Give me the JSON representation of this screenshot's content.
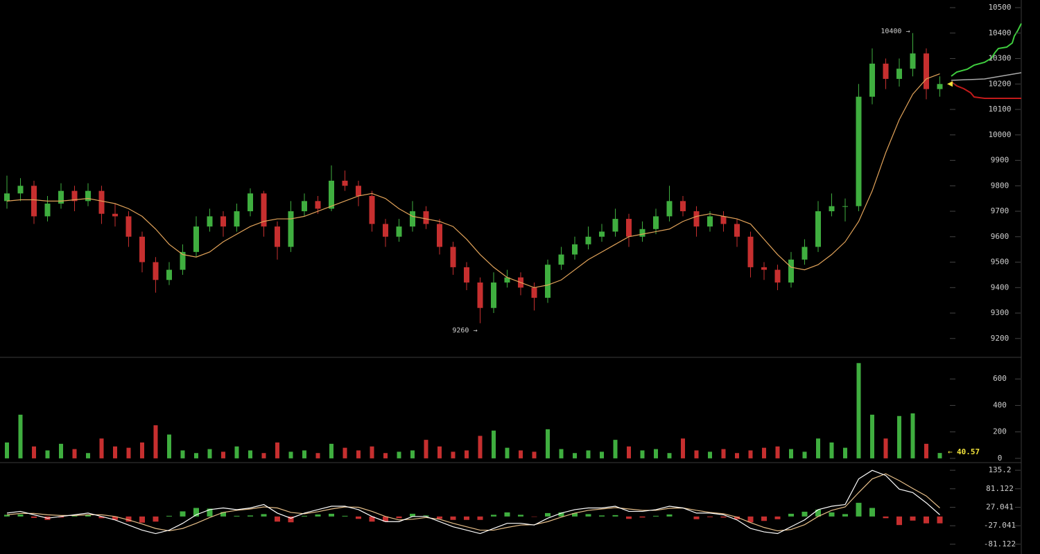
{
  "chart_data": [
    {
      "type": "candlestick",
      "up_color": "#3fae3f",
      "down_color": "#c62f2f",
      "open": [
        9740,
        9770,
        9800,
        9680,
        9730,
        9780,
        9740,
        9780,
        9690,
        9680,
        9600,
        9500,
        9430,
        9470,
        9540,
        9640,
        9680,
        9640,
        9700,
        9770,
        9640,
        9560,
        9700,
        9740,
        9710,
        9820,
        9800,
        9760,
        9650,
        9600,
        9640,
        9700,
        9650,
        9560,
        9480,
        9420,
        9320,
        9420,
        9440,
        9400,
        9360,
        9490,
        9530,
        9570,
        9600,
        9620,
        9670,
        9600,
        9630,
        9680,
        9740,
        9700,
        9640,
        9680,
        9650,
        9600,
        9480,
        9470,
        9420,
        9510,
        9560,
        9700,
        9720,
        9720,
        10150,
        10280,
        10220,
        10260,
        10320,
        10180
      ],
      "high": [
        9840,
        9830,
        9820,
        9760,
        9810,
        9800,
        9810,
        9800,
        9730,
        9700,
        9620,
        9520,
        9500,
        9570,
        9680,
        9710,
        9700,
        9730,
        9790,
        9780,
        9660,
        9740,
        9770,
        9760,
        9880,
        9860,
        9820,
        9780,
        9670,
        9670,
        9740,
        9720,
        9670,
        9580,
        9500,
        9440,
        9460,
        9470,
        9460,
        9420,
        9510,
        9560,
        9600,
        9640,
        9650,
        9710,
        9690,
        9660,
        9710,
        9800,
        9760,
        9720,
        9700,
        9700,
        9670,
        9620,
        9500,
        9490,
        9540,
        9590,
        9740,
        9770,
        9750,
        10200,
        10340,
        10300,
        10300,
        10400,
        10340,
        10230
      ],
      "low": [
        9710,
        9740,
        9650,
        9660,
        9710,
        9700,
        9720,
        9650,
        9640,
        9560,
        9460,
        9380,
        9410,
        9450,
        9520,
        9620,
        9600,
        9620,
        9680,
        9600,
        9510,
        9540,
        9680,
        9690,
        9700,
        9780,
        9720,
        9620,
        9560,
        9580,
        9620,
        9630,
        9530,
        9450,
        9390,
        9260,
        9300,
        9400,
        9370,
        9310,
        9340,
        9470,
        9510,
        9550,
        9580,
        9600,
        9560,
        9580,
        9610,
        9660,
        9680,
        9600,
        9620,
        9620,
        9560,
        9440,
        9430,
        9390,
        9400,
        9490,
        9540,
        9680,
        9660,
        9700,
        10120,
        10180,
        10190,
        10230,
        10140,
        10150
      ],
      "close": [
        9770,
        9800,
        9680,
        9730,
        9780,
        9740,
        9780,
        9690,
        9680,
        9600,
        9500,
        9430,
        9470,
        9540,
        9640,
        9680,
        9640,
        9700,
        9770,
        9640,
        9560,
        9700,
        9740,
        9710,
        9820,
        9800,
        9760,
        9650,
        9600,
        9640,
        9700,
        9650,
        9560,
        9480,
        9420,
        9320,
        9420,
        9440,
        9400,
        9360,
        9490,
        9530,
        9570,
        9600,
        9620,
        9670,
        9600,
        9630,
        9680,
        9740,
        9700,
        9640,
        9680,
        9650,
        9600,
        9480,
        9470,
        9420,
        9510,
        9560,
        9700,
        9720,
        9720,
        10150,
        10280,
        10220,
        10260,
        10320,
        10180,
        10200
      ],
      "moving_average": {
        "color": "#e3a45a",
        "values": [
          9740,
          9745,
          9745,
          9740,
          9740,
          9745,
          9750,
          9740,
          9730,
          9710,
          9680,
          9630,
          9570,
          9530,
          9520,
          9540,
          9580,
          9610,
          9640,
          9660,
          9670,
          9670,
          9680,
          9700,
          9720,
          9740,
          9760,
          9770,
          9750,
          9710,
          9680,
          9670,
          9660,
          9640,
          9590,
          9530,
          9480,
          9440,
          9420,
          9400,
          9410,
          9430,
          9470,
          9510,
          9540,
          9570,
          9600,
          9610,
          9620,
          9630,
          9660,
          9680,
          9690,
          9680,
          9670,
          9650,
          9590,
          9530,
          9480,
          9470,
          9490,
          9530,
          9580,
          9660,
          9780,
          9930,
          10060,
          10160,
          10220,
          10240
        ]
      },
      "high_label": "10400 →",
      "low_label": "9260 →",
      "ylim": [
        9126,
        10530
      ],
      "yticks": [
        9200,
        9300,
        9400,
        9500,
        9600,
        9700,
        9800,
        9900,
        10000,
        10100,
        10200,
        10300,
        10400,
        10500
      ]
    },
    {
      "type": "bar",
      "values": [
        120,
        330,
        90,
        60,
        110,
        70,
        40,
        150,
        90,
        80,
        120,
        250,
        180,
        60,
        40,
        70,
        50,
        90,
        60,
        40,
        120,
        50,
        60,
        40,
        110,
        80,
        60,
        90,
        40,
        50,
        60,
        140,
        90,
        50,
        60,
        170,
        210,
        80,
        60,
        50,
        220,
        70,
        40,
        60,
        50,
        140,
        90,
        60,
        70,
        40,
        150,
        60,
        50,
        70,
        40,
        60,
        80,
        90,
        70,
        50,
        150,
        120,
        80,
        720,
        330,
        150,
        320,
        340,
        110,
        40.57
      ],
      "ylim": [
        -32,
        753
      ],
      "yticks": [
        0,
        200,
        400,
        600
      ]
    },
    {
      "type": "macd",
      "macd": {
        "color": "#ffffff",
        "values": [
          10,
          15,
          5,
          -5,
          0,
          5,
          10,
          0,
          -10,
          -25,
          -40,
          -50,
          -40,
          -20,
          5,
          20,
          25,
          20,
          25,
          35,
          10,
          -5,
          10,
          20,
          30,
          30,
          20,
          0,
          -15,
          -15,
          0,
          0,
          -15,
          -30,
          -40,
          -50,
          -35,
          -20,
          -20,
          -25,
          -5,
          10,
          20,
          25,
          25,
          30,
          15,
          15,
          20,
          30,
          25,
          10,
          10,
          5,
          -10,
          -35,
          -45,
          -50,
          -30,
          -10,
          20,
          30,
          35,
          110,
          135,
          120,
          80,
          70,
          40,
          5
        ]
      },
      "signal": {
        "color": "#e8c08a",
        "values": [
          5,
          9,
          9,
          5,
          3,
          3,
          5,
          5,
          0,
          -10,
          -22,
          -35,
          -42,
          -35,
          -20,
          -3,
          12,
          18,
          22,
          28,
          25,
          12,
          8,
          14,
          22,
          28,
          27,
          15,
          0,
          -10,
          -8,
          -3,
          -8,
          -20,
          -30,
          -40,
          -40,
          -32,
          -25,
          -24,
          -15,
          -2,
          10,
          18,
          22,
          26,
          22,
          18,
          18,
          24,
          25,
          18,
          12,
          8,
          -2,
          -18,
          -32,
          -42,
          -38,
          -24,
          0,
          18,
          28,
          70,
          110,
          125,
          105,
          82,
          60,
          25
        ]
      },
      "histogram": {
        "values": [
          5,
          6,
          -4,
          -10,
          -3,
          2,
          5,
          -5,
          -10,
          -15,
          -18,
          -15,
          2,
          15,
          25,
          23,
          13,
          2,
          3,
          7,
          -15,
          -17,
          2,
          6,
          8,
          2,
          -7,
          -15,
          -15,
          -5,
          8,
          3,
          -7,
          -10,
          -10,
          -10,
          5,
          12,
          5,
          -1,
          10,
          12,
          10,
          7,
          3,
          4,
          -7,
          -3,
          2,
          6,
          0,
          -8,
          -2,
          -3,
          -8,
          -17,
          -13,
          -8,
          8,
          14,
          20,
          12,
          7,
          40,
          25,
          -5,
          -25,
          -12,
          -20,
          -20
        ]
      },
      "ylim": [
        -109.7,
        153.6
      ],
      "yticks": [
        -81.122,
        -27.041,
        27.041,
        81.122,
        135.2
      ]
    }
  ]
}
